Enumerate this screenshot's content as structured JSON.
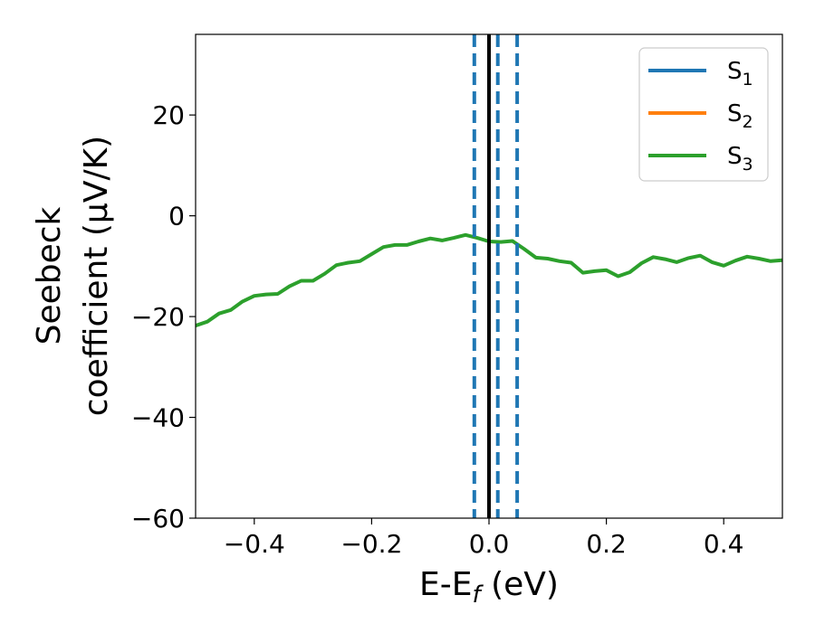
{
  "chart_data": {
    "type": "line",
    "xlabel_main": "E-E",
    "xlabel_sub": "f",
    "xlabel_unit": " (eV)",
    "ylabel_line1": "Seebeck",
    "ylabel_line2": "coefficient  (μV/K)",
    "xlim": [
      -0.5,
      0.5
    ],
    "ylim": [
      -60,
      36
    ],
    "x_ticks": [
      {
        "value": -0.4,
        "label": "−0.4"
      },
      {
        "value": -0.2,
        "label": "−0.2"
      },
      {
        "value": 0.0,
        "label": "0.0"
      },
      {
        "value": 0.2,
        "label": "0.2"
      },
      {
        "value": 0.4,
        "label": "0.4"
      }
    ],
    "y_ticks": [
      {
        "value": 20,
        "label": "20"
      },
      {
        "value": 0,
        "label": "0"
      },
      {
        "value": -20,
        "label": "−20"
      },
      {
        "value": -40,
        "label": "−40"
      },
      {
        "value": -60,
        "label": "−60"
      }
    ],
    "grid": false,
    "legend_position": "top-right",
    "series": [
      {
        "name": "S",
        "subscript": "1",
        "color": "#1f77b4",
        "x": [],
        "y": []
      },
      {
        "name": "S",
        "subscript": "2",
        "color": "#ff7f0e",
        "x": [],
        "y": []
      },
      {
        "name": "S",
        "subscript": "3",
        "color": "#2ca02c",
        "x": [
          -0.5,
          -0.48,
          -0.46,
          -0.44,
          -0.42,
          -0.4,
          -0.38,
          -0.36,
          -0.34,
          -0.32,
          -0.3,
          -0.28,
          -0.26,
          -0.24,
          -0.22,
          -0.2,
          -0.18,
          -0.16,
          -0.14,
          -0.12,
          -0.1,
          -0.08,
          -0.06,
          -0.04,
          -0.02,
          0.0,
          0.02,
          0.04,
          0.06,
          0.08,
          0.1,
          0.12,
          0.14,
          0.16,
          0.18,
          0.2,
          0.22,
          0.24,
          0.26,
          0.28,
          0.3,
          0.32,
          0.34,
          0.36,
          0.38,
          0.4,
          0.42,
          0.44,
          0.46,
          0.48,
          0.5
        ],
        "y": [
          -21.8,
          -21.0,
          -19.4,
          -18.7,
          -17.0,
          -15.9,
          -15.6,
          -15.5,
          -14.0,
          -12.9,
          -12.9,
          -11.5,
          -9.8,
          -9.3,
          -9.0,
          -7.6,
          -6.2,
          -5.8,
          -5.8,
          -5.1,
          -4.5,
          -4.9,
          -4.4,
          -3.8,
          -4.4,
          -5.1,
          -5.2,
          -5.0,
          -6.6,
          -8.3,
          -8.5,
          -9.0,
          -9.3,
          -11.3,
          -11.0,
          -10.8,
          -12.0,
          -11.2,
          -9.4,
          -8.2,
          -8.6,
          -9.2,
          -8.4,
          -7.9,
          -9.2,
          -9.9,
          -8.9,
          -8.1,
          -8.5,
          -9.0,
          -8.8
        ]
      }
    ],
    "vlines": [
      {
        "x": -0.025,
        "style": "dashed",
        "color": "#1f77b4"
      },
      {
        "x": 0.015,
        "style": "dashed",
        "color": "#1f77b4"
      },
      {
        "x": 0.048,
        "style": "dashed",
        "color": "#1f77b4"
      },
      {
        "x": 0.0,
        "style": "solid",
        "color": "#000000"
      }
    ]
  }
}
